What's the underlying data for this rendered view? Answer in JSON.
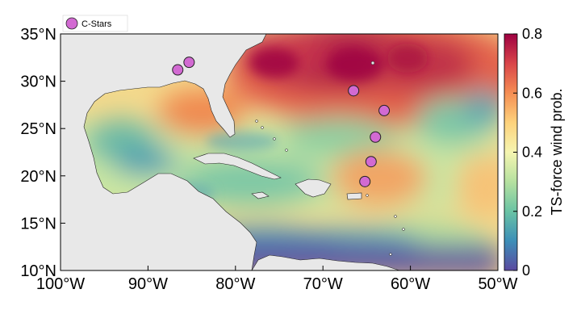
{
  "map": {
    "x_ticks": [
      "100°W",
      "90°W",
      "80°W",
      "70°W",
      "60°W",
      "50°W"
    ],
    "y_ticks": [
      "35°N",
      "30°N",
      "25°N",
      "20°N",
      "15°N",
      "10°N"
    ],
    "lon_range": [
      -100,
      -50
    ],
    "lat_range": [
      10,
      35
    ],
    "land_color": "#e8e8e8",
    "coast_color": "#222222"
  },
  "legend": {
    "label": "C-Stars",
    "marker_color": "#d26ad2"
  },
  "colorbar": {
    "label": "TS-force wind prob.",
    "ticks": [
      "0.8",
      "0.6",
      "0.4",
      "0.2",
      "0"
    ],
    "range": [
      0,
      0.8
    ],
    "colormap": [
      "#5b4aa0",
      "#3d8fb8",
      "#6ac3a4",
      "#b6e1a0",
      "#f5f5b0",
      "#fdd27c",
      "#f58e53",
      "#d9454a",
      "#9e0142"
    ]
  },
  "stations": [
    {
      "lon": -86.6,
      "lat": 31.2
    },
    {
      "lon": -85.3,
      "lat": 32.0
    },
    {
      "lon": -66.5,
      "lat": 29.0
    },
    {
      "lon": -63.0,
      "lat": 26.9
    },
    {
      "lon": -64.0,
      "lat": 24.1
    },
    {
      "lon": -64.5,
      "lat": 21.5
    },
    {
      "lon": -65.2,
      "lat": 19.4
    }
  ]
}
